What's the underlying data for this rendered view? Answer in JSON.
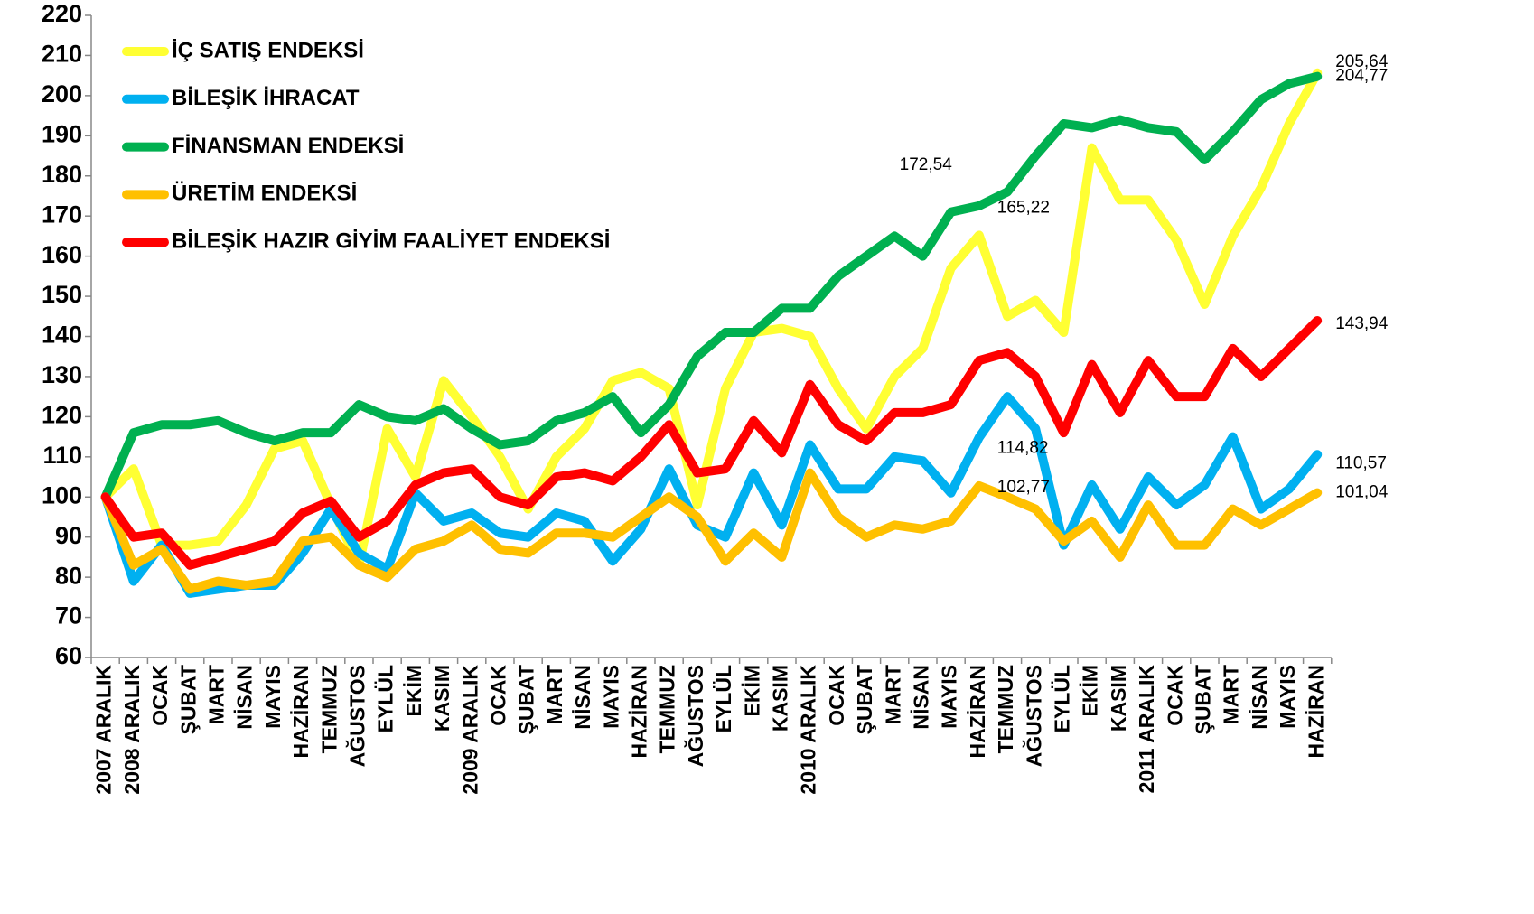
{
  "chart_data": {
    "type": "line",
    "categories": [
      "2007 ARALIK",
      "2008 ARALIK",
      "OCAK",
      "ŞUBAT",
      "MART",
      "NİSAN",
      "MAYIS",
      "HAZİRAN",
      "TEMMUZ",
      "AĞUSTOS",
      "EYLÜL",
      "EKİM",
      "KASIM",
      "2009 ARALIK",
      "OCAK",
      "ŞUBAT",
      "MART",
      "NİSAN",
      "MAYIS",
      "HAZİRAN",
      "TEMMUZ",
      "AĞUSTOS",
      "EYLÜL",
      "EKİM",
      "KASIM",
      "2010 ARALIK",
      "OCAK",
      "ŞUBAT",
      "MART",
      "NİSAN",
      "MAYIS",
      "HAZİRAN",
      "TEMMUZ",
      "AĞUSTOS",
      "EYLÜL",
      "EKİM",
      "KASIM",
      "2011 ARALIK",
      "OCAK",
      "ŞUBAT",
      "MART",
      "NİSAN",
      "MAYIS",
      "HAZİRAN"
    ],
    "ylim": [
      60,
      220
    ],
    "yticks": [
      60,
      70,
      80,
      90,
      100,
      110,
      120,
      130,
      140,
      150,
      160,
      170,
      180,
      190,
      200,
      210,
      220
    ],
    "legend": "upper left",
    "series": [
      {
        "name": "İÇ SATIŞ ENDEKSİ",
        "color": "#ffff33",
        "values": [
          100,
          107,
          88,
          88,
          89,
          98,
          112,
          114,
          98,
          83,
          117,
          105,
          129,
          120,
          110,
          97,
          110,
          117,
          129,
          131,
          127,
          98,
          127,
          141,
          142,
          140,
          127,
          117,
          130,
          137,
          157,
          165.22,
          145,
          149,
          141,
          187,
          174,
          174,
          164,
          148,
          165,
          177,
          193,
          205.64
        ],
        "value_labels": [
          null,
          null,
          null,
          null,
          null,
          null,
          null,
          null,
          null,
          null,
          null,
          null,
          null,
          null,
          null,
          null,
          null,
          null,
          null,
          null,
          null,
          null,
          null,
          null,
          null,
          null,
          null,
          null,
          null,
          null,
          null,
          "165,22",
          null,
          null,
          null,
          null,
          null,
          null,
          null,
          null,
          null,
          null,
          null,
          "205,64"
        ]
      },
      {
        "name": "BİLEŞİK İHRACAT",
        "color": "#00b0f0",
        "values": [
          100,
          79,
          88,
          76,
          77,
          78,
          78,
          86,
          97,
          86,
          82,
          101,
          94,
          96,
          91,
          90,
          96,
          94,
          84,
          92,
          107,
          93,
          90,
          106,
          93,
          113,
          102,
          102,
          110,
          109,
          101,
          114.82,
          125,
          117,
          88,
          103,
          92,
          105,
          98,
          103,
          115,
          97,
          102,
          110.57
        ],
        "value_labels": [
          null,
          null,
          null,
          null,
          null,
          null,
          null,
          null,
          null,
          null,
          null,
          null,
          null,
          null,
          null,
          null,
          null,
          null,
          null,
          null,
          null,
          null,
          null,
          null,
          null,
          null,
          null,
          null,
          null,
          null,
          null,
          "114,82",
          null,
          null,
          null,
          null,
          null,
          null,
          null,
          null,
          null,
          null,
          null,
          "110,57"
        ]
      },
      {
        "name": "FİNANSMAN ENDEKSİ",
        "color": "#00b050",
        "values": [
          100,
          116,
          118,
          118,
          119,
          116,
          114,
          116,
          116,
          123,
          120,
          119,
          122,
          117,
          113,
          114,
          119,
          121,
          125,
          116,
          123,
          135,
          141,
          141,
          147,
          147,
          155,
          160,
          165,
          160,
          171,
          172.54,
          176,
          185,
          193,
          192,
          194,
          192,
          191,
          184,
          191,
          199,
          203,
          204.77
        ],
        "value_labels": [
          null,
          null,
          null,
          null,
          null,
          null,
          null,
          null,
          null,
          null,
          null,
          null,
          null,
          null,
          null,
          null,
          null,
          null,
          null,
          null,
          null,
          null,
          null,
          null,
          null,
          null,
          null,
          null,
          null,
          null,
          null,
          "172,54",
          null,
          null,
          null,
          null,
          null,
          null,
          null,
          null,
          null,
          null,
          null,
          "204,77"
        ]
      },
      {
        "name": "ÜRETİM ENDEKSİ",
        "color": "#ffc000",
        "values": [
          100,
          83,
          87,
          77,
          79,
          78,
          79,
          89,
          90,
          83,
          80,
          87,
          89,
          93,
          87,
          86,
          91,
          91,
          90,
          95,
          100,
          95,
          84,
          91,
          85,
          106,
          95,
          90,
          93,
          92,
          94,
          102.77,
          100,
          97,
          89,
          94,
          85,
          98,
          88,
          88,
          97,
          93,
          97,
          101.04
        ],
        "value_labels": [
          null,
          null,
          null,
          null,
          null,
          null,
          null,
          null,
          null,
          null,
          null,
          null,
          null,
          null,
          null,
          null,
          null,
          null,
          null,
          null,
          null,
          null,
          null,
          null,
          null,
          null,
          null,
          null,
          null,
          null,
          null,
          "102,77",
          null,
          null,
          null,
          null,
          null,
          null,
          null,
          null,
          null,
          null,
          null,
          "101,04"
        ]
      },
      {
        "name": "BİLEŞİK HAZIR GİYİM FAALİYET ENDEKSİ",
        "color": "#ff0000",
        "values": [
          100,
          90,
          91,
          83,
          85,
          87,
          89,
          96,
          99,
          90,
          94,
          103,
          106,
          107,
          100,
          98,
          105,
          106,
          104,
          110,
          118,
          106,
          107,
          119,
          111,
          128,
          118,
          114,
          121,
          121,
          123,
          134,
          136,
          130,
          116,
          133,
          121,
          134,
          125,
          125,
          137,
          130,
          137,
          143.94
        ],
        "value_labels": [
          null,
          null,
          null,
          null,
          null,
          null,
          null,
          null,
          null,
          null,
          null,
          null,
          null,
          null,
          null,
          null,
          null,
          null,
          null,
          null,
          null,
          null,
          null,
          null,
          null,
          null,
          null,
          null,
          null,
          null,
          null,
          null,
          null,
          null,
          null,
          null,
          null,
          null,
          null,
          null,
          null,
          null,
          null,
          "143,94"
        ]
      }
    ]
  }
}
